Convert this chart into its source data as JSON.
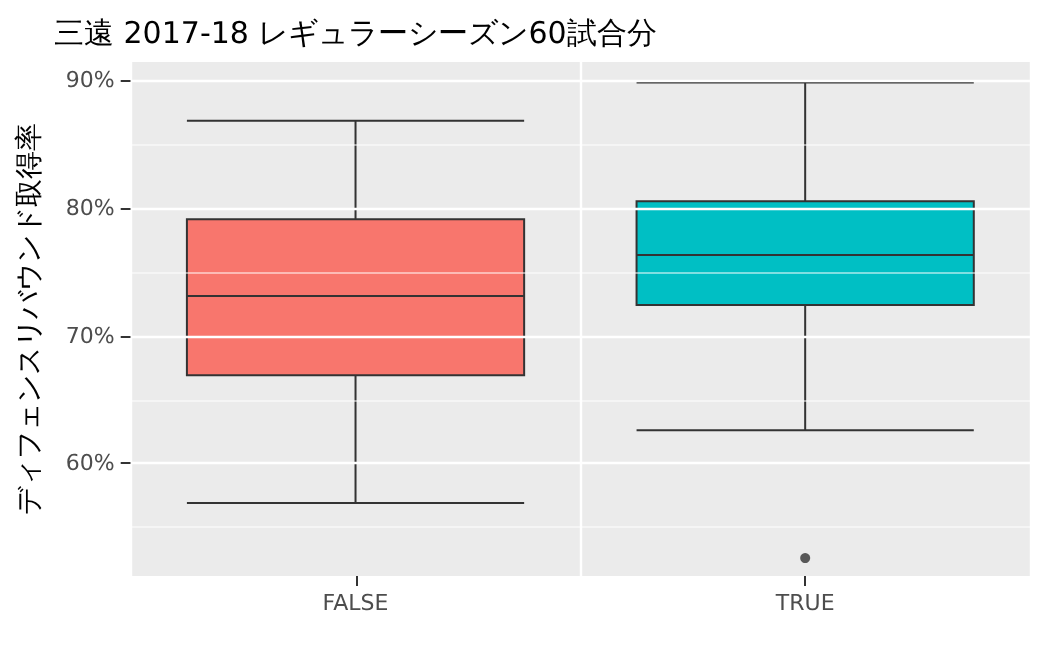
{
  "chart_data": {
    "type": "box",
    "title": "三遠 2017-18 レギュラーシーズン60試合分",
    "ylabel": "ディフェンスリバウンド取得率",
    "categories": [
      "FALSE",
      "TRUE"
    ],
    "boxes": [
      {
        "low": 56.9,
        "q1": 66.9,
        "median": 73.1,
        "q3": 79.1,
        "high": 86.8
      },
      {
        "low": 62.6,
        "q1": 72.4,
        "median": 76.3,
        "q3": 80.5,
        "high": 89.8,
        "outliers": [
          52.6
        ]
      }
    ],
    "colors": [
      "#f8766d",
      "#00bfc4"
    ],
    "ylim": [
      51.2,
      91.4
    ],
    "yticks": [
      {
        "value": 55,
        "label": null
      },
      {
        "value": 60,
        "label": "60%"
      },
      {
        "value": 65,
        "label": null
      },
      {
        "value": 70,
        "label": "70%"
      },
      {
        "value": 75,
        "label": null
      },
      {
        "value": 80,
        "label": "80%"
      },
      {
        "value": 85,
        "label": null
      },
      {
        "value": 90,
        "label": "90%"
      }
    ],
    "grid": true
  }
}
